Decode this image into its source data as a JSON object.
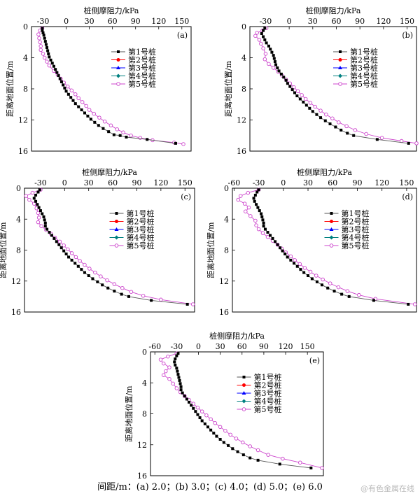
{
  "caption": "间距/m：(a) 2.0；(b) 3.0；(c) 4.0；(d) 5.0；(e) 6.0",
  "watermark": "@有色金属在线",
  "colors": {
    "pile1": "#000000",
    "pile2": "#ff0000",
    "pile3": "#0000ff",
    "pile4": "#008080",
    "pile5": "#cc44cc"
  },
  "chart_data": [
    {
      "type": "line",
      "panel_label": "(a)",
      "xlabel": "桩侧摩阻力/kPa",
      "ylabel": "距离地面位置/m",
      "xlim": [
        -45,
        162
      ],
      "xticks": [
        -30,
        0,
        30,
        60,
        90,
        120,
        150
      ],
      "ylim": [
        0,
        16
      ],
      "yticks": [
        0,
        4,
        8,
        12,
        16
      ],
      "legend": [
        "第1号桩",
        "第2号桩",
        "第3号桩",
        "第4号桩",
        "第5号桩"
      ],
      "series": [
        {
          "name": "第1号桩",
          "x": [
            -31,
            -31,
            -30,
            -29,
            -28,
            -27,
            -26,
            -25,
            -24,
            -23,
            -22,
            -20,
            -18,
            -16,
            -14,
            -12,
            -10,
            -8,
            -6,
            -4,
            -2,
            0,
            3,
            6,
            9,
            12,
            16,
            20,
            24,
            28,
            32,
            37,
            42,
            48,
            55,
            62,
            70,
            78,
            105,
            142
          ],
          "y": [
            0.2,
            0.5,
            0.8,
            1.1,
            1.5,
            1.9,
            2.3,
            2.7,
            3.1,
            3.5,
            3.9,
            4.3,
            4.7,
            5.1,
            5.5,
            5.9,
            6.3,
            6.7,
            7.1,
            7.5,
            7.9,
            8.3,
            8.7,
            9.1,
            9.5,
            9.9,
            10.3,
            10.7,
            11.1,
            11.5,
            11.9,
            12.3,
            12.7,
            13.1,
            13.5,
            13.9,
            14.0,
            14.2,
            14.5,
            15.0
          ]
        },
        {
          "name": "第5号桩",
          "x": [
            -31,
            -34,
            -36,
            -35,
            -34,
            -33,
            -33,
            -30,
            -28,
            -25,
            -22,
            -16,
            -11,
            -7,
            -3,
            2,
            7,
            12,
            16,
            21,
            26,
            30,
            36,
            43,
            50,
            58,
            66,
            74,
            84,
            96,
            112,
            140,
            152
          ],
          "y": [
            0.2,
            0.5,
            1.0,
            1.5,
            2.0,
            2.5,
            3.0,
            3.5,
            4.0,
            4.5,
            5.0,
            5.7,
            6.2,
            6.7,
            7.2,
            7.7,
            8.2,
            8.7,
            9.2,
            9.7,
            10.2,
            10.7,
            11.2,
            11.7,
            12.2,
            12.7,
            13.2,
            13.6,
            14.0,
            14.3,
            14.6,
            14.9,
            15.1
          ]
        }
      ]
    },
    {
      "type": "line",
      "panel_label": "(b)",
      "xlabel": "桩侧摩阻力/kPa",
      "ylabel": "距离地面位置/m",
      "xlim": [
        -50,
        162
      ],
      "xticks": [
        -30,
        0,
        30,
        60,
        90,
        120,
        150
      ],
      "ylim": [
        0,
        16
      ],
      "yticks": [
        0,
        4,
        8,
        12,
        16
      ],
      "legend": [
        "第1号桩",
        "第2号桩",
        "第3号桩",
        "第4号桩",
        "第5号桩"
      ],
      "series": [
        {
          "name": "第1号桩",
          "x": [
            -31,
            -33,
            -35,
            -33,
            -31,
            -29,
            -26,
            -24,
            -22,
            -20,
            -19,
            -18,
            -17,
            -15,
            -13,
            -10,
            -7,
            -4,
            -2,
            1,
            4,
            7,
            10,
            14,
            18,
            22,
            26,
            30,
            35,
            40,
            46,
            52,
            59,
            66,
            74,
            82,
            112,
            152
          ],
          "y": [
            0.2,
            0.5,
            0.9,
            1.3,
            1.7,
            2.1,
            2.5,
            2.9,
            3.3,
            3.7,
            4.1,
            4.5,
            4.9,
            5.3,
            5.7,
            6.1,
            6.5,
            6.9,
            7.3,
            7.7,
            8.1,
            8.5,
            8.9,
            9.3,
            9.7,
            10.1,
            10.5,
            10.9,
            11.3,
            11.7,
            12.1,
            12.5,
            12.9,
            13.3,
            13.7,
            14.0,
            14.5,
            15.0
          ]
        },
        {
          "name": "第5号桩",
          "x": [
            -29,
            -34,
            -41,
            -43,
            -38,
            -36,
            -33,
            -30,
            -31,
            -26,
            -20,
            -14,
            -9,
            -4,
            1,
            6,
            11,
            16,
            21,
            27,
            33,
            40,
            47,
            55,
            63,
            73,
            84,
            98,
            118,
            143,
            162
          ],
          "y": [
            0.2,
            0.5,
            0.8,
            1.2,
            1.7,
            2.2,
            2.8,
            3.5,
            4.2,
            4.8,
            5.3,
            5.8,
            6.3,
            6.8,
            7.3,
            7.8,
            8.3,
            8.8,
            9.3,
            9.8,
            10.3,
            10.8,
            11.3,
            11.8,
            12.3,
            12.8,
            13.3,
            13.8,
            14.3,
            14.7,
            15.0
          ]
        }
      ]
    },
    {
      "type": "line",
      "panel_label": "(c)",
      "xlabel": "桩侧摩阻力/kPa",
      "ylabel": "距离地面位置/m",
      "xlim": [
        -50,
        162
      ],
      "xticks": [
        -30,
        0,
        30,
        60,
        90,
        120,
        150
      ],
      "ylim": [
        0,
        16
      ],
      "yticks": [
        0,
        4,
        8,
        12,
        16
      ],
      "legend": [
        "第1号桩",
        "第2号桩",
        "第3号桩",
        "第4号桩",
        "第5号桩"
      ],
      "series": [
        {
          "name": "第1号桩",
          "x": [
            -31,
            -33,
            -36,
            -38,
            -36,
            -34,
            -32,
            -30,
            -28,
            -26,
            -25,
            -24,
            -24,
            -22,
            -19,
            -16,
            -13,
            -10,
            -7,
            -4,
            -1,
            2,
            5,
            9,
            13,
            17,
            21,
            25,
            30,
            35,
            41,
            47,
            54,
            62,
            71,
            80,
            108,
            153
          ],
          "y": [
            0.2,
            0.5,
            0.9,
            1.3,
            1.7,
            2.1,
            2.5,
            2.9,
            3.3,
            3.7,
            4.1,
            4.5,
            4.9,
            5.3,
            5.7,
            6.1,
            6.5,
            6.9,
            7.3,
            7.7,
            8.1,
            8.5,
            8.9,
            9.3,
            9.7,
            10.1,
            10.5,
            10.9,
            11.3,
            11.7,
            12.1,
            12.5,
            12.9,
            13.3,
            13.7,
            14.0,
            14.5,
            15.0
          ]
        },
        {
          "name": "第5号桩",
          "x": [
            -30,
            -40,
            -48,
            -44,
            -38,
            -35,
            -33,
            -32,
            -33,
            -29,
            -23,
            -17,
            -12,
            -6,
            -1,
            4,
            9,
            14,
            19,
            25,
            31,
            38,
            45,
            53,
            62,
            72,
            83,
            98,
            120,
            160
          ],
          "y": [
            0.2,
            0.6,
            1.0,
            1.5,
            2.0,
            2.6,
            3.2,
            3.8,
            4.4,
            4.9,
            5.4,
            5.9,
            6.4,
            6.9,
            7.4,
            7.9,
            8.4,
            8.9,
            9.4,
            9.9,
            10.4,
            10.9,
            11.4,
            11.9,
            12.4,
            12.9,
            13.4,
            13.9,
            14.4,
            15.0
          ]
        }
      ]
    },
    {
      "type": "line",
      "panel_label": "(d)",
      "xlabel": "桩侧摩阻力/kPa",
      "ylabel": "距离地面位置/m",
      "xlim": [
        -62,
        162
      ],
      "xticks": [
        -60,
        -30,
        0,
        30,
        60,
        90,
        120,
        150
      ],
      "ylim": [
        0,
        16
      ],
      "yticks": [
        0,
        4,
        8,
        12,
        16
      ],
      "legend": [
        "第1号桩",
        "第2号桩",
        "第3号桩",
        "第4号桩",
        "第5号桩"
      ],
      "series": [
        {
          "name": "第1号桩",
          "x": [
            -30,
            -32,
            -34,
            -36,
            -35,
            -33,
            -31,
            -29,
            -27,
            -26,
            -25,
            -24,
            -24,
            -22,
            -19,
            -16,
            -13,
            -10,
            -7,
            -4,
            -1,
            2,
            5,
            9,
            13,
            17,
            21,
            25,
            30,
            35,
            41,
            47,
            54,
            62,
            71,
            80,
            110,
            152
          ],
          "y": [
            0.2,
            0.5,
            0.9,
            1.3,
            1.7,
            2.1,
            2.5,
            2.9,
            3.3,
            3.7,
            4.1,
            4.5,
            4.9,
            5.3,
            5.7,
            6.1,
            6.5,
            6.9,
            7.3,
            7.7,
            8.1,
            8.5,
            8.9,
            9.3,
            9.7,
            10.1,
            10.5,
            10.9,
            11.3,
            11.7,
            12.1,
            12.5,
            12.9,
            13.3,
            13.7,
            14.0,
            14.5,
            15.0
          ]
        },
        {
          "name": "第5号桩",
          "x": [
            -30,
            -43,
            -52,
            -55,
            -47,
            -42,
            -46,
            -40,
            -34,
            -33,
            -30,
            -25,
            -19,
            -13,
            -7,
            -2,
            3,
            9,
            14,
            20,
            26,
            33,
            40,
            48,
            57,
            67,
            78,
            92,
            112,
            160
          ],
          "y": [
            0.2,
            0.6,
            1.0,
            1.5,
            2.0,
            2.5,
            3.0,
            3.6,
            4.2,
            4.8,
            5.3,
            5.8,
            6.3,
            6.8,
            7.3,
            7.8,
            8.3,
            8.8,
            9.3,
            9.8,
            10.3,
            10.8,
            11.3,
            11.8,
            12.3,
            12.8,
            13.3,
            13.8,
            14.3,
            15.0
          ]
        }
      ]
    },
    {
      "type": "line",
      "panel_label": "(e)",
      "xlabel": "桩侧摩阻力/kPa",
      "ylabel": "距离地面位置/m",
      "xlim": [
        -66,
        172
      ],
      "xticks": [
        -60,
        -30,
        0,
        30,
        60,
        90,
        120,
        150
      ],
      "ylim": [
        0,
        16
      ],
      "yticks": [
        0,
        4,
        8,
        12,
        16
      ],
      "legend": [
        "第1号桩",
        "第2号桩",
        "第3号桩",
        "第4号桩",
        "第5号桩"
      ],
      "series": [
        {
          "name": "第1号桩",
          "x": [
            -28,
            -30,
            -32,
            -33,
            -32,
            -30,
            -29,
            -28,
            -27,
            -26,
            -25,
            -24,
            -24,
            -22,
            -19,
            -16,
            -13,
            -10,
            -7,
            -4,
            -1,
            2,
            5,
            9,
            13,
            17,
            21,
            25,
            30,
            35,
            41,
            47,
            54,
            62,
            71,
            82,
            112,
            155
          ],
          "y": [
            0.2,
            0.5,
            0.9,
            1.3,
            1.7,
            2.1,
            2.5,
            2.9,
            3.3,
            3.7,
            4.1,
            4.5,
            4.9,
            5.3,
            5.7,
            6.1,
            6.5,
            6.9,
            7.3,
            7.7,
            8.1,
            8.5,
            8.9,
            9.3,
            9.7,
            10.1,
            10.5,
            10.9,
            11.3,
            11.7,
            12.1,
            12.5,
            12.9,
            13.3,
            13.7,
            14.0,
            14.5,
            15.0
          ]
        },
        {
          "name": "第5号桩",
          "x": [
            -30,
            -42,
            -52,
            -48,
            -40,
            -45,
            -48,
            -40,
            -35,
            -30,
            -25,
            -19,
            -13,
            -7,
            -1,
            5,
            11,
            17,
            23,
            30,
            37,
            44,
            52,
            61,
            71,
            82,
            96,
            116,
            140,
            170
          ],
          "y": [
            0.2,
            0.6,
            1.0,
            1.5,
            2.0,
            2.5,
            3.0,
            3.5,
            4.1,
            4.7,
            5.2,
            5.7,
            6.2,
            6.7,
            7.2,
            7.7,
            8.2,
            8.7,
            9.2,
            9.7,
            10.2,
            10.7,
            11.2,
            11.7,
            12.2,
            12.7,
            13.3,
            13.8,
            14.3,
            15.0
          ]
        }
      ]
    }
  ]
}
